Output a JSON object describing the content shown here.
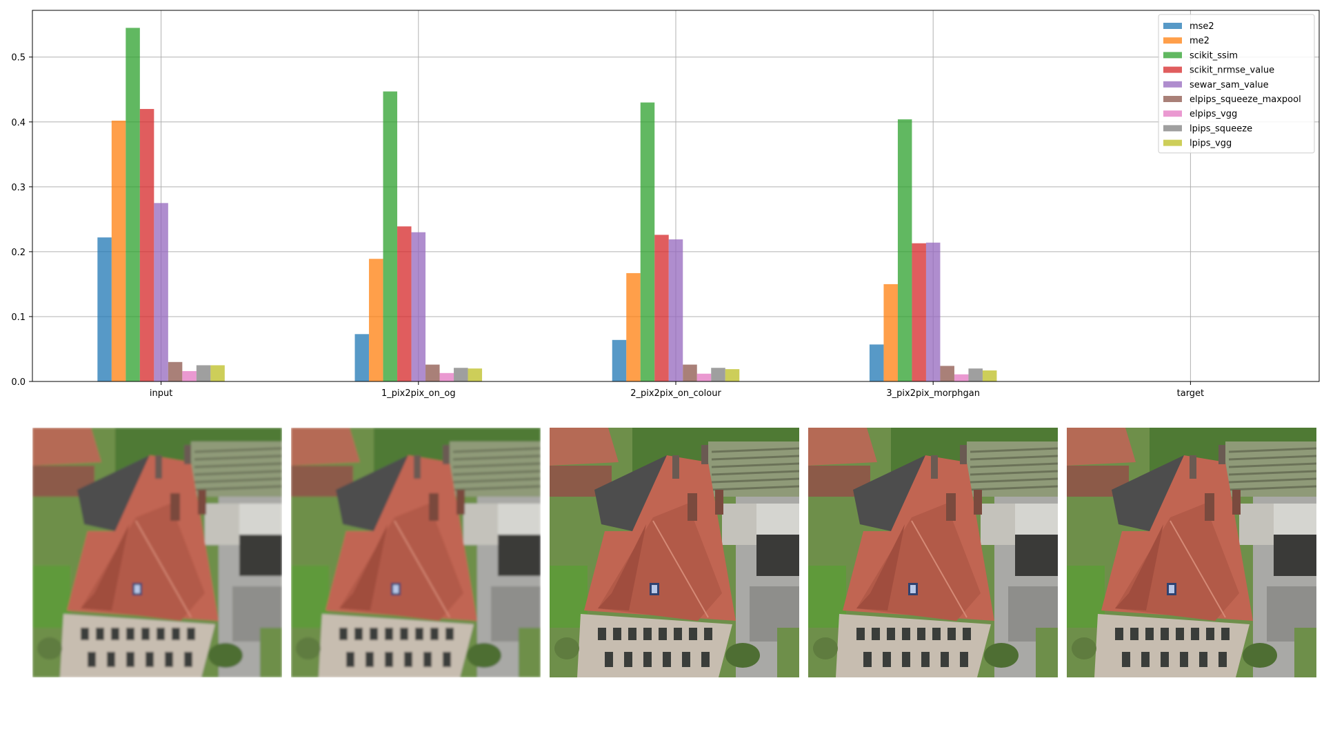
{
  "chart_data": {
    "type": "bar",
    "categories": [
      "input",
      "1_pix2pix_on_og",
      "2_pix2pix_on_colour",
      "3_pix2pix_morphgan",
      "target"
    ],
    "series": [
      {
        "name": "mse2",
        "color": "#1f77b4",
        "values": [
          0.222,
          0.073,
          0.064,
          0.057,
          0
        ]
      },
      {
        "name": "me2",
        "color": "#ff7f0e",
        "values": [
          0.402,
          0.189,
          0.167,
          0.15,
          0
        ]
      },
      {
        "name": "scikit_ssim",
        "color": "#2ca02c",
        "values": [
          0.545,
          0.447,
          0.43,
          0.404,
          0
        ]
      },
      {
        "name": "scikit_nrmse_value",
        "color": "#d62728",
        "values": [
          0.42,
          0.239,
          0.226,
          0.213,
          0
        ]
      },
      {
        "name": "sewar_sam_value",
        "color": "#9467bd",
        "values": [
          0.275,
          0.23,
          0.219,
          0.214,
          0
        ]
      },
      {
        "name": "elpips_squeeze_maxpool",
        "color": "#8c564b",
        "values": [
          0.03,
          0.026,
          0.026,
          0.024,
          0
        ]
      },
      {
        "name": "elpips_vgg",
        "color": "#e377c2",
        "values": [
          0.016,
          0.013,
          0.012,
          0.011,
          0
        ]
      },
      {
        "name": "lpips_squeeze",
        "color": "#7f7f7f",
        "values": [
          0.025,
          0.021,
          0.021,
          0.02,
          0
        ]
      },
      {
        "name": "lpips_vgg",
        "color": "#bcbd22",
        "values": [
          0.025,
          0.02,
          0.019,
          0.017,
          0
        ]
      }
    ],
    "yticks": [
      "0.0",
      "0.1",
      "0.2",
      "0.3",
      "0.4",
      "0.5"
    ],
    "ylim": [
      0,
      0.572
    ],
    "grid": true,
    "legend": "top-right",
    "bar_alpha": 0.75
  },
  "images": [
    {
      "name": "input",
      "sharpness": "blurry"
    },
    {
      "name": "1_pix2pix_on_og",
      "sharpness": "blurry"
    },
    {
      "name": "2_pix2pix_on_colour",
      "sharpness": "sharp"
    },
    {
      "name": "3_pix2pix_morphgan",
      "sharpness": "sharp"
    },
    {
      "name": "target",
      "sharpness": "sharp"
    }
  ]
}
